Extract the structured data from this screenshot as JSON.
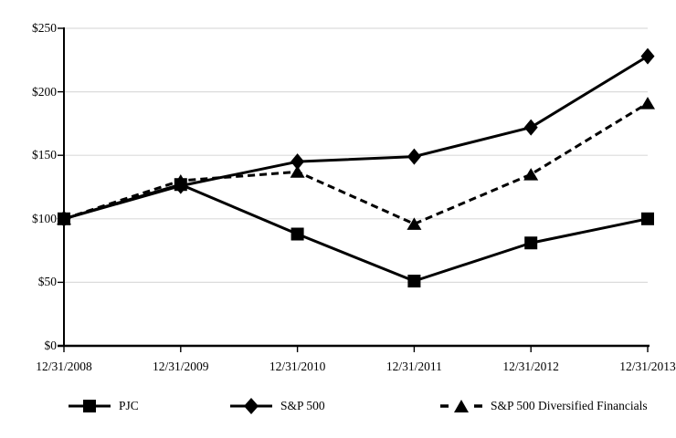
{
  "chart_data": {
    "type": "line",
    "title": "",
    "categories": [
      "12/31/2008",
      "12/31/2009",
      "12/31/2010",
      "12/31/2011",
      "12/31/2012",
      "12/31/2013"
    ],
    "y_ticks": [
      0,
      50,
      100,
      150,
      200,
      250
    ],
    "y_tick_labels": [
      "$0",
      "$50",
      "$100",
      "$150",
      "$200",
      "$250"
    ],
    "ylim": [
      0,
      250
    ],
    "grid": "horizontal-light",
    "legend_position": "bottom",
    "colors": {
      "series": "#000000",
      "gridline": "#dcdcdc",
      "background": "#ffffff"
    },
    "series": [
      {
        "name": "PJC",
        "marker": "square",
        "line": "solid",
        "values": [
          100,
          127,
          88,
          51,
          81,
          100
        ]
      },
      {
        "name": "S&P 500",
        "marker": "diamond",
        "line": "solid",
        "values": [
          100,
          126,
          145,
          149,
          172,
          228
        ]
      },
      {
        "name": "S&P 500 Diversified Financials",
        "marker": "triangle",
        "line": "dashed",
        "values": [
          100,
          130,
          137,
          96,
          135,
          191
        ]
      }
    ]
  }
}
